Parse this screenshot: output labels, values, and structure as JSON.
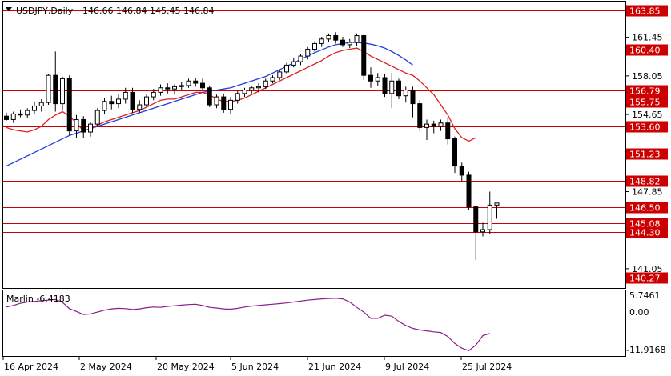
{
  "header": {
    "symbol_label": "USDJPY,Daily",
    "ohlc_label": "146.66 146.84 145.45 146.84"
  },
  "indicator": {
    "label": "Marlin -6.4183",
    "scale_top": "5.7461",
    "scale_mid": "0.00",
    "scale_bottom": "-11.9168"
  },
  "colors": {
    "candle_up": "#ffffff",
    "candle_down": "#000000",
    "ma_fast": "#dc1e1e",
    "ma_slow": "#1e3cdc",
    "levels": "#cc0000",
    "oscillator": "#8b1e8b"
  },
  "chart_data": {
    "type": "candlestick",
    "title": "USDJPY,Daily",
    "ylim": [
      139.35,
      164.6
    ],
    "price_ticks": [
      "161.45",
      "158.05",
      "154.65",
      "147.85",
      "141.05"
    ],
    "date_ticks": [
      "16 Apr 2024",
      "2 May 2024",
      "20 May 2024",
      "5 Jun 2024",
      "21 Jun 2024",
      "9 Jul 2024",
      "25 Jul 2024"
    ],
    "levels": [
      {
        "value": 163.85,
        "label": "163.85"
      },
      {
        "value": 160.4,
        "label": "160.40"
      },
      {
        "value": 156.79,
        "label": "156.79"
      },
      {
        "value": 155.75,
        "label": "155.75"
      },
      {
        "value": 153.6,
        "label": "153.60"
      },
      {
        "value": 151.23,
        "label": "151.23"
      },
      {
        "value": 148.82,
        "label": "148.82"
      },
      {
        "value": 146.5,
        "label": "146.50"
      },
      {
        "value": 145.08,
        "label": "145.08"
      },
      {
        "value": 144.3,
        "label": "144.30"
      },
      {
        "value": 140.27,
        "label": "140.27"
      }
    ],
    "candles": [
      [
        154.5,
        154.8,
        154.1,
        154.2
      ],
      [
        154.2,
        154.9,
        153.9,
        154.7
      ],
      [
        154.7,
        155.1,
        154.4,
        154.6
      ],
      [
        154.6,
        155.2,
        154.3,
        155.0
      ],
      [
        155.0,
        155.8,
        154.7,
        155.4
      ],
      [
        155.4,
        156.0,
        154.9,
        155.7
      ],
      [
        155.7,
        158.2,
        155.5,
        158.1
      ],
      [
        158.1,
        160.2,
        154.9,
        155.6
      ],
      [
        155.6,
        158.0,
        155.0,
        157.8
      ],
      [
        157.8,
        158.1,
        152.8,
        153.2
      ],
      [
        153.2,
        154.6,
        152.6,
        154.2
      ],
      [
        154.2,
        154.5,
        152.6,
        153.1
      ],
      [
        153.1,
        154.0,
        152.7,
        153.8
      ],
      [
        153.8,
        155.2,
        153.6,
        155.0
      ],
      [
        155.0,
        156.1,
        154.7,
        155.8
      ],
      [
        155.8,
        156.3,
        155.1,
        155.6
      ],
      [
        155.6,
        156.4,
        155.2,
        156.0
      ],
      [
        156.0,
        157.0,
        155.6,
        156.6
      ],
      [
        156.6,
        157.0,
        154.8,
        155.1
      ],
      [
        155.1,
        155.9,
        154.8,
        155.5
      ],
      [
        155.5,
        156.4,
        155.3,
        156.2
      ],
      [
        156.2,
        156.9,
        155.9,
        156.6
      ],
      [
        156.6,
        157.3,
        156.3,
        157.0
      ],
      [
        157.0,
        157.4,
        156.5,
        156.9
      ],
      [
        156.9,
        157.3,
        156.4,
        157.1
      ],
      [
        157.1,
        157.5,
        156.8,
        157.2
      ],
      [
        157.2,
        157.8,
        157.0,
        157.6
      ],
      [
        157.6,
        157.9,
        157.1,
        157.4
      ],
      [
        157.4,
        157.8,
        156.8,
        157.0
      ],
      [
        157.0,
        157.2,
        155.3,
        155.5
      ],
      [
        155.5,
        156.4,
        155.2,
        156.2
      ],
      [
        156.2,
        156.5,
        154.8,
        155.1
      ],
      [
        155.1,
        156.2,
        154.7,
        155.9
      ],
      [
        155.9,
        156.7,
        155.6,
        156.5
      ],
      [
        156.5,
        157.0,
        156.2,
        156.8
      ],
      [
        156.8,
        157.2,
        156.5,
        157.0
      ],
      [
        157.0,
        157.4,
        156.6,
        157.1
      ],
      [
        157.1,
        157.8,
        156.9,
        157.6
      ],
      [
        157.6,
        158.1,
        157.4,
        157.9
      ],
      [
        157.9,
        158.6,
        157.7,
        158.4
      ],
      [
        158.4,
        159.2,
        158.2,
        159.0
      ],
      [
        159.0,
        159.6,
        158.8,
        159.3
      ],
      [
        159.3,
        160.0,
        159.0,
        159.8
      ],
      [
        159.8,
        160.6,
        159.5,
        160.4
      ],
      [
        160.4,
        161.1,
        160.2,
        160.9
      ],
      [
        160.9,
        161.5,
        160.6,
        161.3
      ],
      [
        161.3,
        161.8,
        161.0,
        161.6
      ],
      [
        161.6,
        161.9,
        160.9,
        161.2
      ],
      [
        161.2,
        161.5,
        160.6,
        160.8
      ],
      [
        160.8,
        161.3,
        160.5,
        161.0
      ],
      [
        161.0,
        161.8,
        160.7,
        161.6
      ],
      [
        161.6,
        161.7,
        157.7,
        158.1
      ],
      [
        158.1,
        158.8,
        157.0,
        157.6
      ],
      [
        157.6,
        158.3,
        157.2,
        157.9
      ],
      [
        157.9,
        158.2,
        156.2,
        156.5
      ],
      [
        156.5,
        158.3,
        155.2,
        157.6
      ],
      [
        157.6,
        157.8,
        156.0,
        156.3
      ],
      [
        156.3,
        157.1,
        155.7,
        156.8
      ],
      [
        156.8,
        157.1,
        154.4,
        155.6
      ],
      [
        155.6,
        155.9,
        153.2,
        153.5
      ],
      [
        153.5,
        154.2,
        152.4,
        153.8
      ],
      [
        153.8,
        154.1,
        153.0,
        153.6
      ],
      [
        153.6,
        154.2,
        153.2,
        153.9
      ],
      [
        153.9,
        154.4,
        152.0,
        152.5
      ],
      [
        152.5,
        152.7,
        149.5,
        150.1
      ],
      [
        150.1,
        150.4,
        148.8,
        149.3
      ],
      [
        149.3,
        149.6,
        146.2,
        146.5
      ],
      [
        146.5,
        146.6,
        141.8,
        144.3
      ],
      [
        144.3,
        145.1,
        143.9,
        144.5
      ],
      [
        144.5,
        147.85,
        144.1,
        146.66
      ],
      [
        146.66,
        146.84,
        145.45,
        146.84
      ]
    ],
    "ma_fast": [
      153.5,
      153.3,
      153.2,
      153.1,
      153.3,
      153.6,
      154.2,
      154.6,
      154.9,
      154.5,
      153.9,
      153.2,
      153.4,
      153.7,
      154.0,
      154.2,
      154.4,
      154.6,
      154.8,
      155.0,
      155.3,
      155.6,
      155.9,
      156.0,
      156.0,
      156.2,
      156.4,
      156.6,
      156.6,
      156.4,
      156.0,
      155.8,
      155.8,
      155.9,
      156.1,
      156.4,
      156.7,
      157.0,
      157.3,
      157.6,
      157.9,
      158.2,
      158.5,
      158.8,
      159.1,
      159.4,
      159.8,
      160.1,
      160.3,
      160.4,
      160.5,
      160.2,
      159.8,
      159.5,
      159.2,
      158.9,
      158.6,
      158.3,
      158.1,
      157.6,
      157.0,
      156.4,
      155.5,
      154.6,
      153.4,
      152.6,
      152.3,
      152.6
    ],
    "ma_slow": [
      150.1,
      150.4,
      150.7,
      151.0,
      151.3,
      151.6,
      151.9,
      152.2,
      152.5,
      152.8,
      153.0,
      153.2,
      153.4,
      153.6,
      153.8,
      154.0,
      154.2,
      154.4,
      154.6,
      154.8,
      155.0,
      155.2,
      155.4,
      155.6,
      155.8,
      156.0,
      156.2,
      156.4,
      156.6,
      156.7,
      156.8,
      156.9,
      157.0,
      157.2,
      157.4,
      157.6,
      157.8,
      158.0,
      158.3,
      158.6,
      158.9,
      159.2,
      159.5,
      159.8,
      160.1,
      160.35,
      160.6,
      160.8,
      160.9,
      161.0,
      161.0,
      160.95,
      160.85,
      160.7,
      160.5,
      160.2,
      159.85,
      159.45,
      159.0
    ],
    "oscillator": [
      2.0,
      2.5,
      3.2,
      3.6,
      3.8,
      4.0,
      4.2,
      4.4,
      3.5,
      1.5,
      0.6,
      -0.4,
      -0.2,
      0.4,
      1.0,
      1.4,
      1.6,
      1.5,
      1.2,
      1.4,
      1.8,
      2.0,
      1.9,
      2.2,
      2.4,
      2.6,
      2.8,
      2.9,
      2.5,
      1.9,
      1.7,
      1.4,
      1.3,
      1.6,
      2.0,
      2.3,
      2.5,
      2.7,
      2.9,
      3.1,
      3.3,
      3.6,
      3.9,
      4.2,
      4.4,
      4.6,
      4.7,
      4.8,
      4.6,
      3.6,
      1.9,
      0.4,
      -1.6,
      -1.6,
      -0.6,
      -0.9,
      -2.6,
      -3.9,
      -4.8,
      -5.3,
      -5.6,
      -5.9,
      -6.1,
      -7.4,
      -9.6,
      -11.1,
      -11.9,
      -10.1,
      -7.1,
      -6.4
    ]
  }
}
